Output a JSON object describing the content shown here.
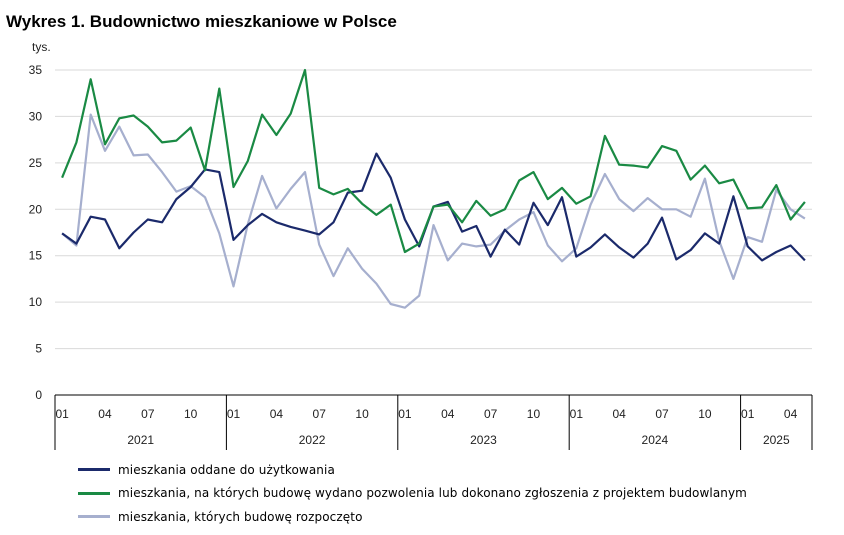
{
  "title": "Wykres 1. Budownictwo mieszkaniowe w Polsce",
  "colors": {
    "completed": "#1b2a6b",
    "permits": "#1a8a44",
    "started": "#a6afce",
    "grid": "#d9d9d9",
    "axis": "#000000"
  },
  "chart_data": {
    "type": "line",
    "ylabel": "tys.",
    "ylim": [
      0,
      35
    ],
    "yticks": [
      0,
      5,
      10,
      15,
      20,
      25,
      30,
      35
    ],
    "grid": "horizontal",
    "legend_position": "bottom",
    "month_tick_labels": [
      "01",
      "04",
      "07",
      "10"
    ],
    "years": [
      {
        "label": "2021",
        "months": 12
      },
      {
        "label": "2022",
        "months": 12
      },
      {
        "label": "2023",
        "months": 12
      },
      {
        "label": "2024",
        "months": 12
      },
      {
        "label": "2025",
        "months": 5
      }
    ],
    "series": [
      {
        "key": "completed",
        "name": "mieszkania oddane do użytkowania",
        "values": [
          17.4,
          16.3,
          19.2,
          18.9,
          15.8,
          17.5,
          18.9,
          18.6,
          21.1,
          22.4,
          24.3,
          24.0,
          16.7,
          18.3,
          19.5,
          18.6,
          18.1,
          17.7,
          17.3,
          18.6,
          21.8,
          22.0,
          26.0,
          23.4,
          18.9,
          16.0,
          20.3,
          20.8,
          17.6,
          18.2,
          14.9,
          17.8,
          16.2,
          20.7,
          18.3,
          21.3,
          14.9,
          15.9,
          17.3,
          15.9,
          14.8,
          16.3,
          19.1,
          14.6,
          15.6,
          17.4,
          16.3,
          21.4,
          16.0,
          14.5,
          15.4,
          16.1,
          14.5
        ]
      },
      {
        "key": "permits",
        "name": "mieszkania, na których budowę wydano pozwolenia lub dokonano zgłoszenia z projektem budowlanym",
        "values": [
          23.4,
          27.2,
          34.0,
          27.0,
          29.8,
          30.1,
          28.9,
          27.2,
          27.4,
          28.8,
          24.2,
          33.0,
          22.4,
          25.2,
          30.2,
          28.0,
          30.3,
          35.0,
          22.3,
          21.6,
          22.2,
          20.6,
          19.4,
          20.5,
          15.4,
          16.3,
          20.3,
          20.5,
          18.6,
          20.9,
          19.3,
          20.0,
          23.1,
          24.0,
          21.1,
          22.3,
          20.6,
          21.4,
          27.9,
          24.8,
          24.7,
          24.5,
          26.8,
          26.3,
          23.2,
          24.7,
          22.8,
          23.2,
          20.1,
          20.2,
          22.6,
          18.9,
          20.8
        ]
      },
      {
        "key": "started",
        "name": "mieszkania, których budowę rozpoczęto",
        "values": [
          17.4,
          16.1,
          30.2,
          26.3,
          28.9,
          25.8,
          25.9,
          24.0,
          21.9,
          22.5,
          21.3,
          17.4,
          11.7,
          18.4,
          23.6,
          20.1,
          22.2,
          24.0,
          16.2,
          12.8,
          15.8,
          13.6,
          12.0,
          9.8,
          9.4,
          10.7,
          18.3,
          14.5,
          16.3,
          16.0,
          16.2,
          17.7,
          18.9,
          19.7,
          16.1,
          14.4,
          15.8,
          20.5,
          23.8,
          21.1,
          19.8,
          21.2,
          20.0,
          20.0,
          19.2,
          23.3,
          16.6,
          12.5,
          17.0,
          16.5,
          22.1,
          20.0,
          19.0
        ]
      }
    ]
  }
}
